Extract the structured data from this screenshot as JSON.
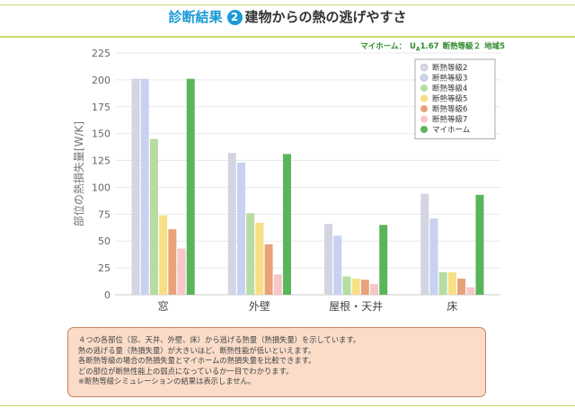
{
  "header": {
    "title_em": "診断結果",
    "badge": "2",
    "title": "建物からの熱の逃げやすさ"
  },
  "home_info": {
    "label": "マイホーム：",
    "ua_symbol": "U",
    "ua_sub": "A",
    "ua_value": "1.67",
    "grade": "断熱等級２",
    "region": "地域5"
  },
  "chart_data": {
    "type": "bar",
    "ylabel": "部位の熱損失量[W/K]",
    "ylim": [
      0,
      225
    ],
    "yticks": [
      0,
      25,
      50,
      75,
      100,
      125,
      150,
      175,
      200,
      225
    ],
    "grid": true,
    "legend_position": "top-right",
    "categories": [
      "窓",
      "外壁",
      "屋根・天井",
      "床"
    ],
    "series": [
      {
        "name": "断熱等級2",
        "color": "#d8d8e6",
        "hatch": true,
        "values": [
          201,
          132,
          66,
          94
        ]
      },
      {
        "name": "断熱等級3",
        "color": "#ccd4f2",
        "hatch": true,
        "values": [
          201,
          123,
          55,
          71
        ]
      },
      {
        "name": "断熱等級4",
        "color": "#b6dca2",
        "hatch": false,
        "values": [
          145,
          76,
          17,
          21
        ]
      },
      {
        "name": "断熱等級5",
        "color": "#f8df85",
        "hatch": false,
        "values": [
          74,
          67,
          15,
          21
        ]
      },
      {
        "name": "断熱等級6",
        "color": "#e8a27a",
        "hatch": false,
        "values": [
          61,
          47,
          14,
          15
        ]
      },
      {
        "name": "断熱等級7",
        "color": "#f6c6c8",
        "hatch": false,
        "values": [
          43,
          19,
          10,
          7
        ]
      },
      {
        "name": "マイホーム",
        "color": "#5ab55a",
        "hatch": false,
        "values": [
          201,
          131,
          65,
          93
        ]
      }
    ]
  },
  "note": {
    "lines": [
      "４つの各部位（窓、天井、外壁、床）から逃げる熱量（熱損失量）を示しています。",
      "熱の逃げる量（熱損失量）が大きいほど、断熱性能が低いといえます。",
      "各断熱等級の場合の熱損失量とマイホームの熱損失量を比較できます。",
      "どの部位が断熱性能上の弱点になっているか一目でわかります。",
      "※断熱等級シミュレーションの結果は表示しません。"
    ]
  }
}
